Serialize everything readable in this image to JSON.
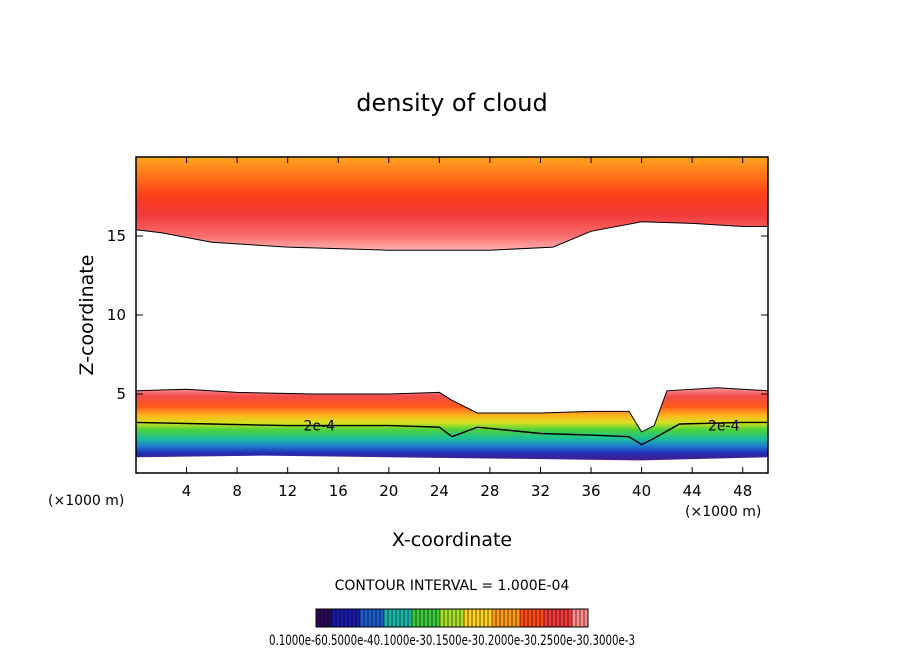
{
  "chart_data": {
    "type": "heatmap",
    "title": "density of cloud",
    "xlabel": "X-coordinate",
    "ylabel": "Z-coordinate",
    "x_unit_label": "(×1000 m)",
    "xlim": [
      0,
      50
    ],
    "ylim": [
      0,
      20
    ],
    "x_ticks": [
      4,
      8,
      12,
      16,
      20,
      24,
      28,
      32,
      36,
      40,
      44,
      48
    ],
    "y_ticks": [
      5,
      10,
      15
    ],
    "contour_interval_text": "CONTOUR INTERVAL = 1.000E-04",
    "contour_labels": [
      {
        "text": "2e-4",
        "x": 14.5,
        "z": 3.0
      },
      {
        "text": "2e-4",
        "x": 46.5,
        "z": 3.0
      }
    ],
    "colorbar_text": "0.1000e-60.5000e-40.1000e-30.1500e-30.2000e-30.2500e-30.3000e-3",
    "colorbar_colors": [
      "#2a0a55",
      "#1a1aa8",
      "#1e5cc8",
      "#19b4a8",
      "#3cc83c",
      "#a8e02a",
      "#ffd21e",
      "#ff9a14",
      "#ff4a14",
      "#f03a3a",
      "#ff8a8a"
    ],
    "upper_layer": {
      "top_z": 20,
      "bottom_edge": [
        [
          0,
          15.4
        ],
        [
          2,
          15.2
        ],
        [
          6,
          14.6
        ],
        [
          12,
          14.3
        ],
        [
          20,
          14.1
        ],
        [
          28,
          14.1
        ],
        [
          33,
          14.3
        ],
        [
          36,
          15.3
        ],
        [
          40,
          15.9
        ],
        [
          44,
          15.8
        ],
        [
          48,
          15.6
        ],
        [
          50,
          15.6
        ]
      ],
      "core_z": 17.3
    },
    "lower_layer": {
      "top_edge": [
        [
          0,
          5.2
        ],
        [
          4,
          5.3
        ],
        [
          8,
          5.1
        ],
        [
          14,
          5.0
        ],
        [
          20,
          5.0
        ],
        [
          24,
          5.1
        ],
        [
          25,
          4.6
        ],
        [
          27,
          3.8
        ],
        [
          32,
          3.8
        ],
        [
          36,
          3.9
        ],
        [
          39,
          3.9
        ],
        [
          40,
          2.6
        ],
        [
          41,
          3.0
        ],
        [
          42,
          5.2
        ],
        [
          46,
          5.4
        ],
        [
          50,
          5.2
        ]
      ],
      "contour_2e4": [
        [
          0,
          3.2
        ],
        [
          6,
          3.1
        ],
        [
          12,
          3.0
        ],
        [
          20,
          3.0
        ],
        [
          24,
          2.9
        ],
        [
          25,
          2.3
        ],
        [
          27,
          2.9
        ],
        [
          32,
          2.5
        ],
        [
          36,
          2.4
        ],
        [
          39,
          2.3
        ],
        [
          40,
          1.8
        ],
        [
          41,
          2.2
        ],
        [
          43,
          3.1
        ],
        [
          48,
          3.2
        ],
        [
          50,
          3.2
        ]
      ],
      "bottom_edge": [
        [
          0,
          1.0
        ],
        [
          10,
          1.1
        ],
        [
          20,
          1.0
        ],
        [
          30,
          0.9
        ],
        [
          40,
          0.8
        ],
        [
          50,
          1.0
        ]
      ]
    }
  }
}
